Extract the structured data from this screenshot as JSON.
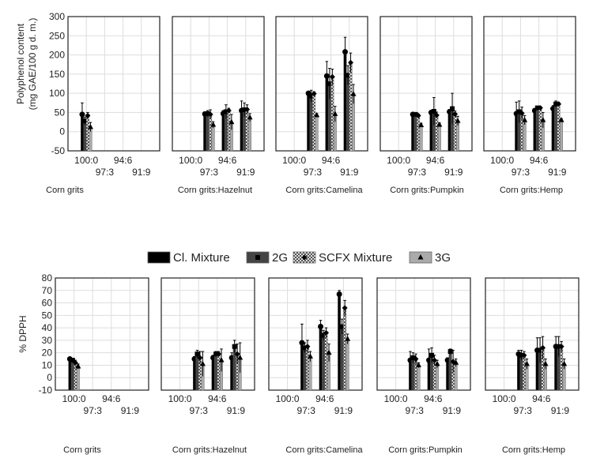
{
  "chart_data": [
    {
      "type": "bar",
      "ylabel": "Polyphenol content\n(mg GAE/100 g d. m.)",
      "ylabel_lines": [
        "Polyphenol content",
        "(mg GAE/100 g d. m.)"
      ],
      "ylim": [
        -50,
        300
      ],
      "yticks": [
        -50,
        0,
        50,
        100,
        150,
        200,
        250,
        300
      ],
      "x_ticks": [
        "100:0",
        "97:3",
        "94:6",
        "91:9"
      ],
      "panels": [
        {
          "name": "Corn grits",
          "groups": {
            "100:0": {
              "values": [
                45,
                28,
                42,
                12
              ],
              "err": [
                30,
                10,
                8,
                12
              ]
            }
          }
        },
        {
          "name": "Corn grits:Hazelnut",
          "groups": {
            "97:3": {
              "values": [
                46,
                47,
                45,
                18
              ],
              "err": [
                6,
                8,
                12,
                8
              ]
            },
            "94:6": {
              "values": [
                47,
                52,
                55,
                25
              ],
              "err": [
                8,
                18,
                6,
                20
              ]
            },
            "91:9": {
              "values": [
                55,
                57,
                58,
                37
              ],
              "err": [
                25,
                18,
                12,
                10
              ]
            }
          }
        },
        {
          "name": "Corn grits:Camelina",
          "groups": {
            "97:3": {
              "values": [
                100,
                93,
                99,
                43
              ],
              "err": [
                4,
                15,
                5,
                4
              ]
            },
            "94:6": {
              "values": [
                145,
                125,
                143,
                46
              ],
              "err": [
                38,
                40,
                20,
                20
              ]
            },
            "91:9": {
              "values": [
                208,
                147,
                180,
                98
              ],
              "err": [
                38,
                25,
                25,
                25
              ]
            }
          }
        },
        {
          "name": "Corn grits:Pumpkin",
          "groups": {
            "97:3": {
              "values": [
                45,
                45,
                42,
                17
              ],
              "err": [
                4,
                5,
                4,
                5
              ]
            },
            "94:6": {
              "values": [
                50,
                53,
                43,
                18
              ],
              "err": [
                5,
                36,
                8,
                5
              ]
            },
            "91:9": {
              "values": [
                52,
                60,
                46,
                28
              ],
              "err": [
                6,
                40,
                8,
                12
              ]
            }
          }
        },
        {
          "name": "Corn grits:Hemp",
          "groups": {
            "97:3": {
              "values": [
                47,
                52,
                48,
                30
              ],
              "err": [
                30,
                28,
                16,
                12
              ]
            },
            "94:6": {
              "values": [
                55,
                62,
                62,
                30
              ],
              "err": [
                5,
                4,
                4,
                20
              ]
            },
            "91:9": {
              "values": [
                60,
                72,
                72,
                30
              ],
              "err": [
                8,
                8,
                5,
                4
              ]
            }
          }
        }
      ]
    },
    {
      "type": "bar",
      "ylabel": "% DPPH",
      "ylabel_lines": [
        "% DPPH"
      ],
      "ylim": [
        -10,
        80
      ],
      "yticks": [
        -10,
        0,
        10,
        20,
        30,
        40,
        50,
        60,
        70,
        80
      ],
      "x_ticks": [
        "100:0",
        "97:3",
        "94:6",
        "91:9"
      ],
      "panels": [
        {
          "name": "Corn grits",
          "groups": {
            "100:0": {
              "values": [
                15,
                14,
                12,
                9
              ],
              "err": [
                1,
                1,
                2,
                2
              ]
            }
          }
        },
        {
          "name": "Corn grits:Hazelnut",
          "groups": {
            "97:3": {
              "values": [
                15,
                19,
                16,
                11
              ],
              "err": [
                2,
                3,
                5,
                10
              ]
            },
            "94:6": {
              "values": [
                16,
                19,
                19,
                14
              ],
              "err": [
                2,
                2,
                2,
                9
              ]
            },
            "91:9": {
              "values": [
                16,
                25,
                19,
                16
              ],
              "err": [
                4,
                5,
                8,
                12
              ]
            }
          }
        },
        {
          "name": "Corn grits:Camelina",
          "groups": {
            "97:3": {
              "values": [
                28,
                24,
                25,
                17
              ],
              "err": [
                15,
                4,
                5,
                4
              ]
            },
            "94:6": {
              "values": [
                41,
                34,
                36,
                20
              ],
              "err": [
                5,
                4,
                4,
                7
              ]
            },
            "91:9": {
              "values": [
                67,
                41,
                56,
                31
              ],
              "err": [
                3,
                6,
                6,
                4
              ]
            }
          }
        },
        {
          "name": "Corn grits:Pumpkin",
          "groups": {
            "97:3": {
              "values": [
                14,
                16,
                15,
                10
              ],
              "err": [
                7,
                4,
                4,
                2
              ]
            },
            "94:6": {
              "values": [
                14,
                18,
                14,
                11
              ],
              "err": [
                9,
                6,
                4,
                3
              ]
            },
            "91:9": {
              "values": [
                14,
                21,
                13,
                12
              ],
              "err": [
                2,
                2,
                9,
                3
              ]
            }
          }
        },
        {
          "name": "Corn grits:Hemp",
          "groups": {
            "97:3": {
              "values": [
                19,
                18,
                18,
                11
              ],
              "err": [
                3,
                4,
                3,
                4
              ]
            },
            "94:6": {
              "values": [
                22,
                22,
                24,
                11
              ],
              "err": [
                10,
                10,
                9,
                4
              ]
            },
            "91:9": {
              "values": [
                25,
                25,
                25,
                11
              ],
              "err": [
                8,
                8,
                4,
                4
              ]
            }
          }
        }
      ]
    }
  ],
  "legend": {
    "placement": "center",
    "items": [
      {
        "label": "Cl. Mixture",
        "color": "#000000",
        "marker": "circle"
      },
      {
        "label": "2G",
        "color": "#444444",
        "marker": "square"
      },
      {
        "label": "SCFX Mixture",
        "color": "#ffffff",
        "marker": "diamond",
        "hatched": true
      },
      {
        "label": "3G",
        "color": "#aaaaaa",
        "marker": "triangle"
      }
    ]
  }
}
